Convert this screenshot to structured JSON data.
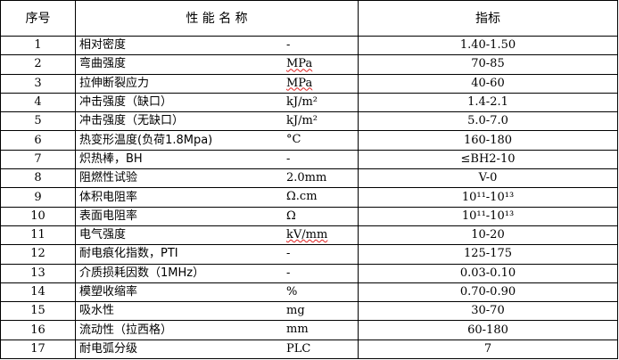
{
  "header": {
    "no": "序号",
    "name": "性 能 名 称",
    "value": "指标"
  },
  "rows": [
    {
      "no": "1",
      "name": "相对密度",
      "unit": "-",
      "value": "1.40-1.50"
    },
    {
      "no": "2",
      "name": "弯曲强度",
      "unit": "MPa",
      "value": "70-85",
      "spell": true
    },
    {
      "no": "3",
      "name": "拉伸断裂应力",
      "unit": "MPa",
      "value": "40-60",
      "spell": true
    },
    {
      "no": "4",
      "name": "冲击强度（缺口）",
      "unit": "kJ/m²",
      "value": "1.4-2.1"
    },
    {
      "no": "5",
      "name": "冲击强度（无缺口）",
      "unit": "kJ/m²",
      "value": "5.0-7.0"
    },
    {
      "no": "6",
      "name": "热变形温度(负荷1.8Mpa)",
      "unit": "°C",
      "value": "160-180"
    },
    {
      "no": "7",
      "name": "炽热棒，BH",
      "unit": "-",
      "value": "≤BH2-10"
    },
    {
      "no": "8",
      "name": "阻燃性试验",
      "unit": "2.0mm",
      "value": "V-0"
    },
    {
      "no": "9",
      "name": "体积电阻率",
      "unit": "Ω.cm",
      "value": "10¹¹-10¹³"
    },
    {
      "no": "10",
      "name": "表面电阻率",
      "unit": "Ω",
      "value": "10¹¹-10¹³"
    },
    {
      "no": "11",
      "name": "电气强度",
      "unit": "kV/mm",
      "value": "10-20",
      "spell": true
    },
    {
      "no": "12",
      "name": "耐电痕化指数，PTI",
      "unit": "-",
      "value": "125-175"
    },
    {
      "no": "13",
      "name": "介质损耗因数（1MHz）",
      "unit": "-",
      "value": "0.03-0.10"
    },
    {
      "no": "14",
      "name": "模塑收缩率",
      "unit": "%",
      "value": "0.70-0.90"
    },
    {
      "no": "15",
      "name": "吸水性",
      "unit": "mg",
      "value": "30-70"
    },
    {
      "no": "16",
      "name": "流动性（拉西格）",
      "unit": "mm",
      "value": "60-180"
    },
    {
      "no": "17",
      "name": "耐电弧分级",
      "unit": "PLC",
      "value": "7"
    }
  ]
}
